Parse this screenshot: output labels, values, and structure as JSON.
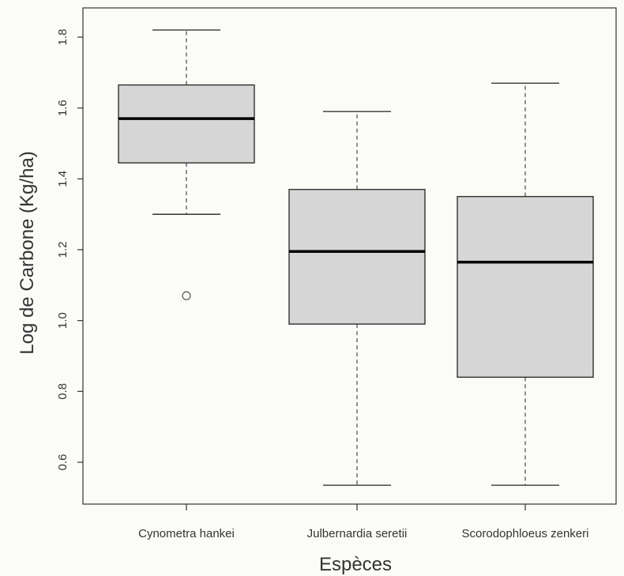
{
  "chart_data": {
    "type": "box",
    "title": "",
    "xlabel": "Espèces",
    "ylabel": "Log de Carbone (Kg/ha)",
    "ylim": [
      0.5,
      1.88
    ],
    "yticks": [
      0.6,
      0.8,
      1.0,
      1.2,
      1.4,
      1.6,
      1.8
    ],
    "ytick_labels": [
      "0.6",
      "0.8",
      "1.0",
      "1.2",
      "1.4",
      "1.6",
      "1.8"
    ],
    "categories": [
      "Cynometra hankei",
      "Julbernardia seretii",
      "Scorodophloeus zenkeri"
    ],
    "boxes": [
      {
        "category": "Cynometra hankei",
        "min": 1.3,
        "q1": 1.445,
        "median": 1.57,
        "q3": 1.665,
        "max": 1.82,
        "outliers": [
          1.07
        ]
      },
      {
        "category": "Julbernardia seretii",
        "min": 0.535,
        "q1": 0.99,
        "median": 1.195,
        "q3": 1.37,
        "max": 1.59,
        "outliers": []
      },
      {
        "category": "Scorodophloeus zenkeri",
        "min": 0.535,
        "q1": 0.84,
        "median": 1.165,
        "q3": 1.35,
        "max": 1.67,
        "outliers": []
      }
    ],
    "box_fill": "#d6d6d6",
    "line_color": "#222222",
    "grid": false
  }
}
